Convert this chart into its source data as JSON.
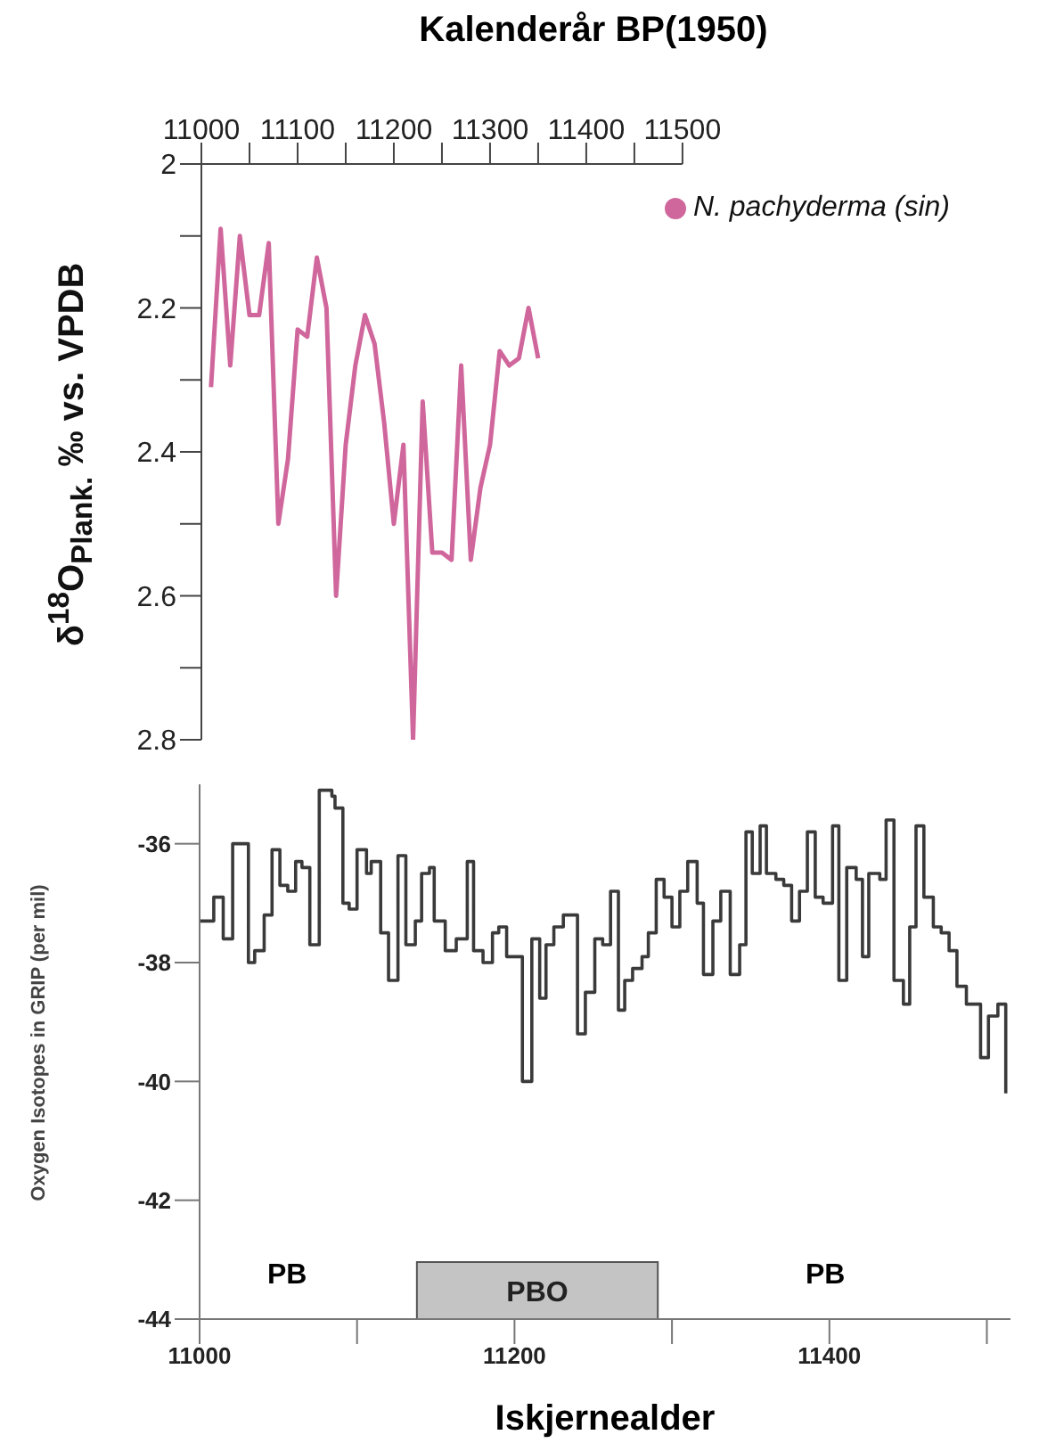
{
  "chart_data": [
    {
      "type": "line",
      "xlabel": "Kalenderår BP(1950)",
      "ylabel": "δ$^{18}$O$_{Plank.}$ ‰ vs. VPDB",
      "x": [
        11010,
        11020,
        11030,
        11040,
        11050,
        11060,
        11070,
        11080,
        11090,
        11100,
        11110,
        11120,
        11130,
        11140,
        11150,
        11160,
        11170,
        11180,
        11190,
        11200,
        11210,
        11220,
        11230,
        11240,
        11250,
        11260,
        11270,
        11280,
        11290,
        11300,
        11310,
        11320,
        11330,
        11340,
        11350
      ],
      "series": [
        {
          "name": "N. pachyderma (sin)",
          "color": "#d0679c",
          "values": [
            2.31,
            2.09,
            2.28,
            2.1,
            2.21,
            2.21,
            2.11,
            2.5,
            2.41,
            2.23,
            2.24,
            2.13,
            2.2,
            2.6,
            2.39,
            2.28,
            2.21,
            2.25,
            2.36,
            2.5,
            2.39,
            2.8,
            2.33,
            2.54,
            2.54,
            2.55,
            2.28,
            2.55,
            2.45,
            2.39,
            2.26,
            2.28,
            2.27,
            2.2,
            2.27
          ]
        }
      ],
      "xlim": [
        11000,
        11500
      ],
      "xticks": [
        11000,
        {
          "value": 11050,
          "label": null
        },
        11100,
        {
          "value": 11150,
          "label": null
        },
        11200,
        {
          "value": 11250,
          "label": null
        },
        11300,
        {
          "value": 11350,
          "label": null
        },
        11400,
        {
          "value": 11450,
          "label": null
        },
        11500
      ],
      "ylim": [
        2.8,
        2
      ],
      "yticks": [
        2,
        {
          "value": 2.1,
          "label": null
        },
        2.2,
        {
          "value": 2.3,
          "label": null
        },
        2.4,
        {
          "value": 2.5,
          "label": null
        },
        2.6,
        {
          "value": 2.7,
          "label": null
        },
        2.8
      ],
      "legend": "top right",
      "marker": "none"
    },
    {
      "type": "step",
      "xlabel": "Iskjernealder",
      "ylabel": "Oxygen Isotopes in GRIP (per mil)",
      "x": [
        11000,
        11009,
        11015,
        11021,
        11026,
        11031,
        11035,
        11041,
        11046,
        11051,
        11056,
        11061,
        11065,
        11070,
        11076,
        11084,
        11086,
        11091,
        11095,
        11100,
        11106,
        11109,
        11115,
        11120,
        11126,
        11131,
        11137,
        11141,
        11146,
        11149,
        11156,
        11163,
        11170,
        11174,
        11180,
        11186,
        11190,
        11195,
        11200,
        11205,
        11211,
        11216,
        11220,
        11225,
        11231,
        11240,
        11245,
        11251,
        11256,
        11261,
        11266,
        11270,
        11275,
        11281,
        11285,
        11290,
        11295,
        11300,
        11305,
        11310,
        11316,
        11320,
        11326,
        11331,
        11337,
        11343,
        11347,
        11351,
        11356,
        11360,
        11366,
        11371,
        11376,
        11381,
        11386,
        11391,
        11396,
        11402,
        11406,
        11411,
        11417,
        11421,
        11425,
        11432,
        11436,
        11441,
        11447,
        11451,
        11455,
        11460,
        11466,
        11471,
        11476,
        11481,
        11487,
        11496,
        11501,
        11507,
        11512
      ],
      "series": [
        {
          "color": "#3a3a3a",
          "values": [
            -37.3,
            -36.9,
            -37.6,
            -36.0,
            -36.0,
            -38.0,
            -37.8,
            -37.2,
            -36.1,
            -36.7,
            -36.8,
            -36.3,
            -36.4,
            -37.7,
            -35.1,
            -35.2,
            -35.4,
            -37.0,
            -37.1,
            -36.1,
            -36.5,
            -36.3,
            -37.5,
            -38.3,
            -36.2,
            -37.7,
            -37.3,
            -36.5,
            -36.4,
            -37.3,
            -37.8,
            -37.6,
            -36.3,
            -37.8,
            -38.0,
            -37.5,
            -37.4,
            -37.9,
            -37.9,
            -40.0,
            -37.6,
            -38.6,
            -37.7,
            -37.4,
            -37.2,
            -39.2,
            -38.5,
            -37.6,
            -37.7,
            -36.8,
            -38.8,
            -38.3,
            -38.1,
            -37.9,
            -37.5,
            -36.6,
            -36.9,
            -37.4,
            -36.8,
            -36.3,
            -37.0,
            -38.2,
            -37.3,
            -36.8,
            -38.2,
            -37.7,
            -35.8,
            -36.5,
            -35.7,
            -36.5,
            -36.6,
            -36.7,
            -37.3,
            -36.8,
            -35.8,
            -36.9,
            -37.0,
            -35.7,
            -38.3,
            -36.4,
            -36.6,
            -37.9,
            -36.5,
            -36.6,
            -35.6,
            -38.3,
            -38.7,
            -37.4,
            -35.7,
            -36.9,
            -37.4,
            -37.5,
            -37.8,
            -38.4,
            -38.7,
            -39.6,
            -38.9,
            -38.7,
            -40.2
          ]
        }
      ],
      "xlim": [
        11000,
        11515
      ],
      "xticks": [
        11000,
        {
          "value": 11100,
          "label": null
        },
        11200,
        {
          "value": 11300,
          "label": null
        },
        11400,
        {
          "value": 11500,
          "label": null
        }
      ],
      "ylim": [
        -44,
        -35
      ],
      "yticks": [
        -36,
        -38,
        -40,
        -42,
        -44
      ],
      "bands": [
        {
          "axis": "x",
          "from": 11138,
          "to": 11291,
          "label": "PBO",
          "color": "#c4c4c4"
        }
      ],
      "annotations": [
        "PB",
        "PB"
      ],
      "marker": "none"
    }
  ]
}
